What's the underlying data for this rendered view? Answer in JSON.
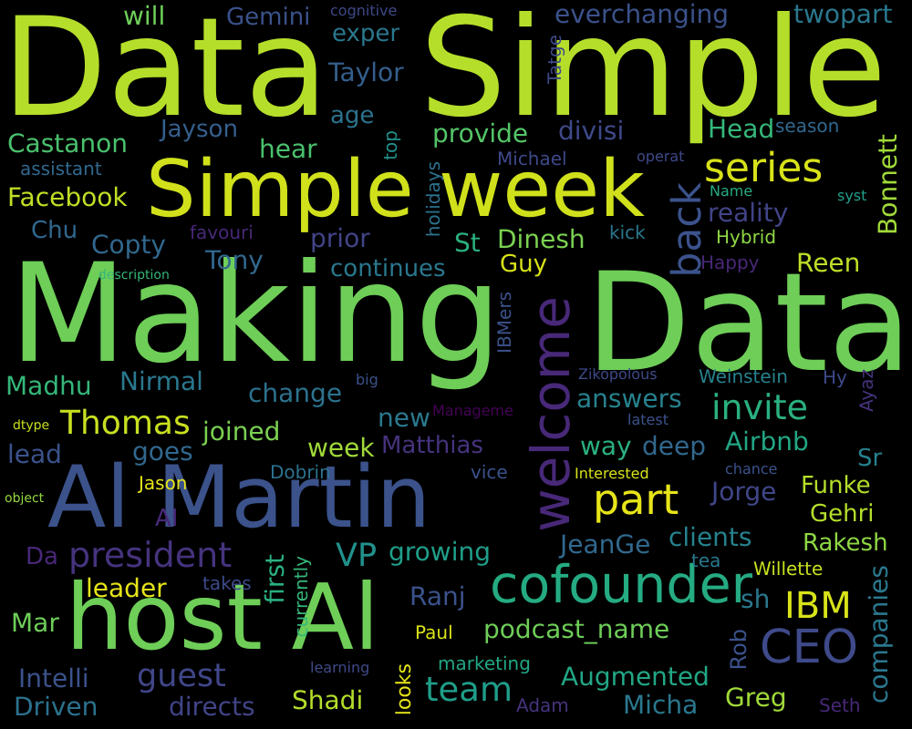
{
  "background": "#000000",
  "words": [
    {
      "text": "Data",
      "color": "#b5de2b"
    },
    {
      "text": "Simple",
      "color": "#b5de2b"
    },
    {
      "text": "Making",
      "color": "#6ece58"
    },
    {
      "text": "Data",
      "color": "#6ece58"
    },
    {
      "text": "Simple week",
      "color": "#d0e11c"
    },
    {
      "text": "Al Martin",
      "color": "#3b528b"
    },
    {
      "text": "host Al",
      "color": "#6ece58"
    },
    {
      "text": "welcome",
      "color": "#482878"
    },
    {
      "text": "cofounder",
      "color": "#25ab82"
    },
    {
      "text": "CEO",
      "color": "#3e4a89"
    },
    {
      "text": "series",
      "color": "#d8e219"
    },
    {
      "text": "back",
      "color": "#3b528b"
    },
    {
      "text": "part",
      "color": "#e7e419"
    },
    {
      "text": "IBM",
      "color": "#d8e219"
    },
    {
      "text": "president",
      "color": "#46337e"
    },
    {
      "text": "invite",
      "color": "#2ab07f"
    },
    {
      "text": "Thomas",
      "color": "#c8e020"
    },
    {
      "text": "team",
      "color": "#1f9e89"
    },
    {
      "text": "guest",
      "color": "#404688"
    },
    {
      "text": "VP",
      "color": "#21918c"
    },
    {
      "text": "podcast_name",
      "color": "#6ece58"
    },
    {
      "text": "Facebook",
      "color": "#c0df25"
    },
    {
      "text": "Castanon",
      "color": "#4ac16d"
    },
    {
      "text": "provide",
      "color": "#54c568"
    },
    {
      "text": "reality",
      "color": "#414487"
    },
    {
      "text": "Bonnett",
      "color": "#a0da39"
    },
    {
      "text": "companies",
      "color": "#2a788e"
    },
    {
      "text": "Augmented",
      "color": "#22a785"
    },
    {
      "text": "will",
      "color": "#6ece58"
    },
    {
      "text": "Gemini",
      "color": "#3b528b"
    },
    {
      "text": "cognitive",
      "color": "#3e4989"
    },
    {
      "text": "everchanging",
      "color": "#3b528b"
    },
    {
      "text": "twopart",
      "color": "#2a788e"
    },
    {
      "text": "exper",
      "color": "#2a788e"
    },
    {
      "text": "Taylor",
      "color": "#355f8d"
    },
    {
      "text": "Tatge",
      "color": "#3e4a89"
    },
    {
      "text": "age",
      "color": "#2c728e"
    },
    {
      "text": "Jayson",
      "color": "#355f8d"
    },
    {
      "text": "top",
      "color": "#21918c"
    },
    {
      "text": "divisi",
      "color": "#3e4989"
    },
    {
      "text": "Head",
      "color": "#35b779"
    },
    {
      "text": "season",
      "color": "#31688e"
    },
    {
      "text": "hear",
      "color": "#4ac16d"
    },
    {
      "text": "assistant",
      "color": "#31688e"
    },
    {
      "text": "Michael",
      "color": "#3e4989"
    },
    {
      "text": "operat",
      "color": "#3e4989"
    },
    {
      "text": "Name",
      "color": "#25ab82"
    },
    {
      "text": "syst",
      "color": "#1f9e89"
    },
    {
      "text": "holidays",
      "color": "#2c728e"
    },
    {
      "text": "Chu",
      "color": "#31688e"
    },
    {
      "text": "favouri",
      "color": "#482878"
    },
    {
      "text": "prior",
      "color": "#414487"
    },
    {
      "text": "St",
      "color": "#2ab07f"
    },
    {
      "text": "Dinesh",
      "color": "#7ad151"
    },
    {
      "text": "kick",
      "color": "#2a788e"
    },
    {
      "text": "Hybrid",
      "color": "#8fd744"
    },
    {
      "text": "Copty",
      "color": "#31688e"
    },
    {
      "text": "Tony",
      "color": "#31688e"
    },
    {
      "text": "continues",
      "color": "#2a788e"
    },
    {
      "text": "Guy",
      "color": "#d8e219"
    },
    {
      "text": "Happy",
      "color": "#482878"
    },
    {
      "text": "Reen",
      "color": "#bddf26"
    },
    {
      "text": "description",
      "color": "#35b779"
    },
    {
      "text": "IBMers",
      "color": "#3b528b"
    },
    {
      "text": "Zikopolous",
      "color": "#3e4989"
    },
    {
      "text": "Weinstein",
      "color": "#26828e"
    },
    {
      "text": "Hy",
      "color": "#3e4a89"
    },
    {
      "text": "Madhu",
      "color": "#35b779"
    },
    {
      "text": "Nirmal",
      "color": "#2a788e"
    },
    {
      "text": "change",
      "color": "#2c728e"
    },
    {
      "text": "big",
      "color": "#3b528b"
    },
    {
      "text": "answers",
      "color": "#26828e"
    },
    {
      "text": "Ayaz",
      "color": "#46337e"
    },
    {
      "text": "dtype",
      "color": "#c8e020"
    },
    {
      "text": "new",
      "color": "#2a788e"
    },
    {
      "text": "Manageme",
      "color": "#440154"
    },
    {
      "text": "latest",
      "color": "#3b528b"
    },
    {
      "text": "joined",
      "color": "#7ad151"
    },
    {
      "text": "week",
      "color": "#a0da39"
    },
    {
      "text": "Matthias",
      "color": "#46337e"
    },
    {
      "text": "way",
      "color": "#2ab07f"
    },
    {
      "text": "deep",
      "color": "#31688e"
    },
    {
      "text": "Airbnb",
      "color": "#22a785"
    },
    {
      "text": "lead",
      "color": "#3b528b"
    },
    {
      "text": "goes",
      "color": "#31688e"
    },
    {
      "text": "Sr",
      "color": "#26828e"
    },
    {
      "text": "Dobrin",
      "color": "#2c728e"
    },
    {
      "text": "vice",
      "color": "#3b528b"
    },
    {
      "text": "Interested",
      "color": "#d8e219"
    },
    {
      "text": "chance",
      "color": "#3b528b"
    },
    {
      "text": "Funke",
      "color": "#b5de2b"
    },
    {
      "text": "Jason",
      "color": "#e5e419"
    },
    {
      "text": "object",
      "color": "#95d840"
    },
    {
      "text": "AI",
      "color": "#482878"
    },
    {
      "text": "Jorge",
      "color": "#404688"
    },
    {
      "text": "Gehri",
      "color": "#b5de2b"
    },
    {
      "text": "Da",
      "color": "#482878"
    },
    {
      "text": "growing",
      "color": "#1f9e89"
    },
    {
      "text": "JeanGe",
      "color": "#31688e"
    },
    {
      "text": "clients",
      "color": "#26828e"
    },
    {
      "text": "Rakesh",
      "color": "#8fd744"
    },
    {
      "text": "takes",
      "color": "#3e4a89"
    },
    {
      "text": "tea",
      "color": "#2a788e"
    },
    {
      "text": "Willette",
      "color": "#c8e020"
    },
    {
      "text": "leader",
      "color": "#e5e419"
    },
    {
      "text": "first",
      "color": "#2ab07f"
    },
    {
      "text": "currently",
      "color": "#35b779"
    },
    {
      "text": "Ranj",
      "color": "#3b528b"
    },
    {
      "text": "sh",
      "color": "#2a788e"
    },
    {
      "text": "Mar",
      "color": "#6ece58"
    },
    {
      "text": "Paul",
      "color": "#d8e219"
    },
    {
      "text": "Rob",
      "color": "#3b528b"
    },
    {
      "text": "Intelli",
      "color": "#3b528b"
    },
    {
      "text": "learning",
      "color": "#3e4a89"
    },
    {
      "text": "marketing",
      "color": "#22a785"
    },
    {
      "text": "Driven",
      "color": "#2c728e"
    },
    {
      "text": "directs",
      "color": "#414487"
    },
    {
      "text": "Shadi",
      "color": "#b5de2b"
    },
    {
      "text": "looks",
      "color": "#e5e419"
    },
    {
      "text": "Adam",
      "color": "#46337e"
    },
    {
      "text": "Micha",
      "color": "#2a788e"
    },
    {
      "text": "Greg",
      "color": "#a0da39"
    },
    {
      "text": "Seth",
      "color": "#482878"
    }
  ]
}
